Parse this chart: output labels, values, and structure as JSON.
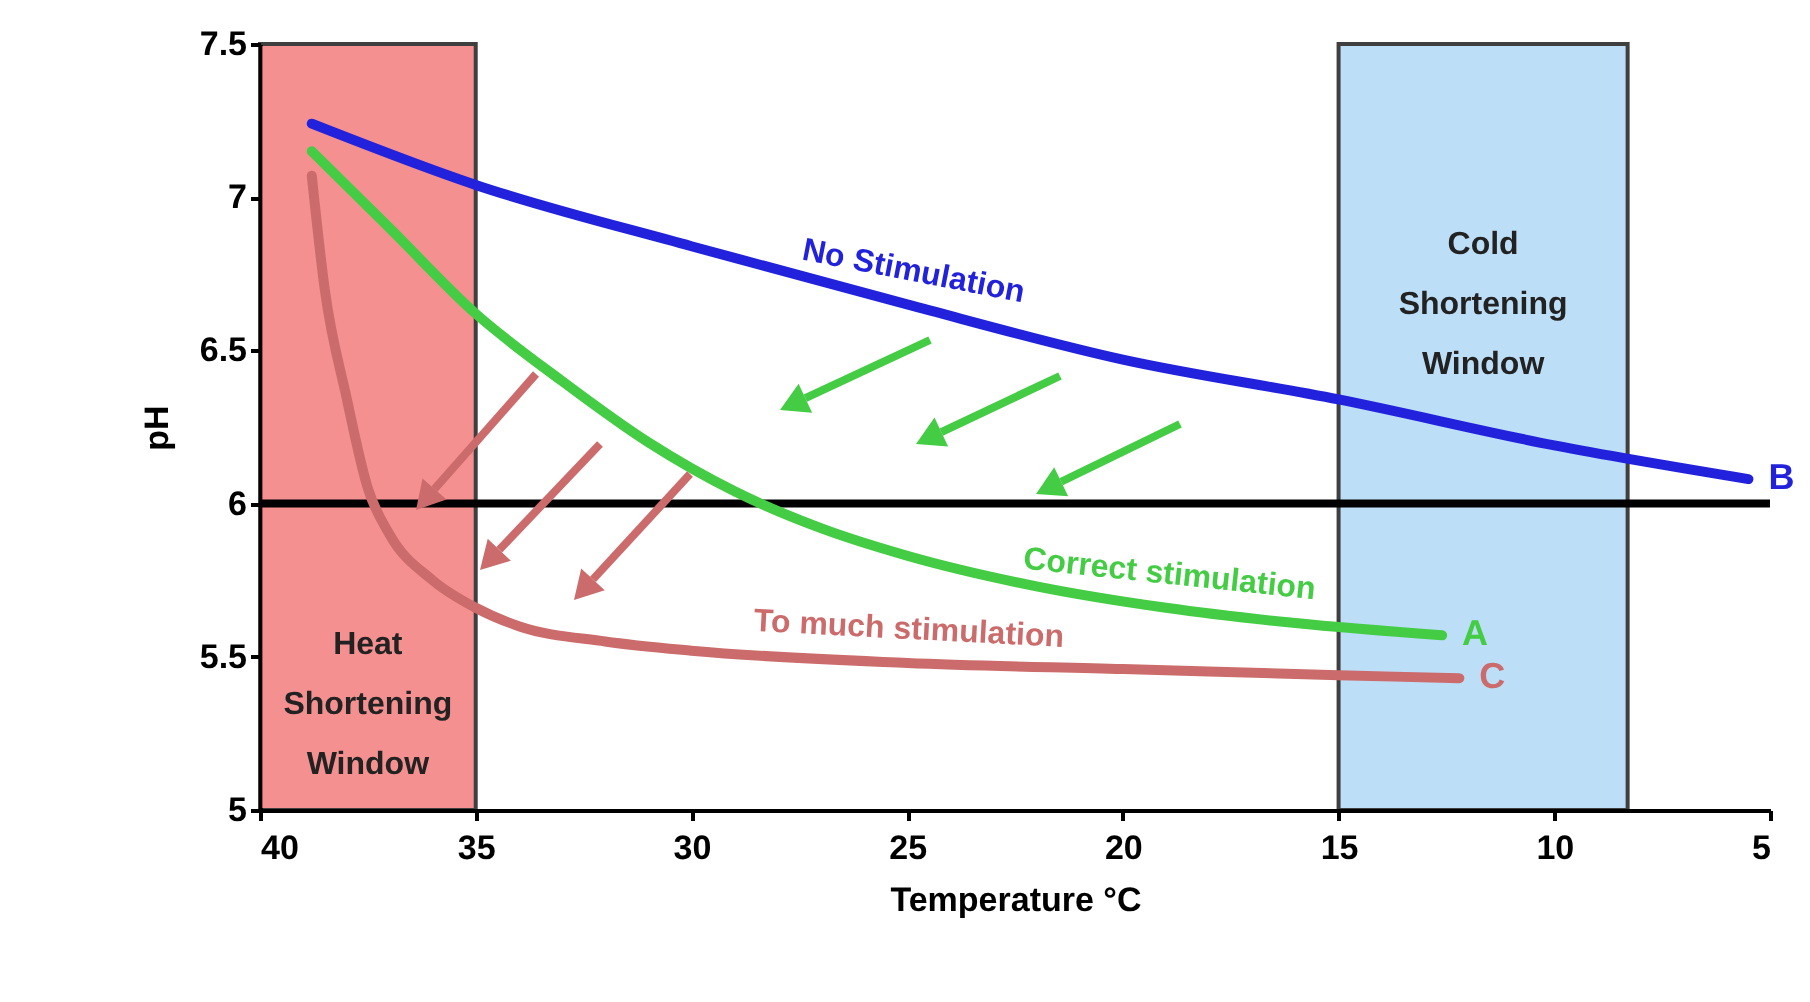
{
  "chart_data": {
    "type": "line",
    "xlabel": "Temperature °C",
    "ylabel": "pH",
    "xlim": [
      40,
      5
    ],
    "xticks": [
      40,
      35,
      30,
      25,
      20,
      15,
      10,
      5
    ],
    "ylim": [
      5,
      7.5
    ],
    "yticks": [
      5,
      5.5,
      6,
      6.5,
      7,
      7.5
    ],
    "grid": false,
    "legend": false,
    "marker": "none",
    "line_style": "solid",
    "series": [
      {
        "name": "No Stimulation",
        "color": "#2222dd",
        "x": [
          38.8,
          35,
          30,
          25,
          20,
          15,
          10,
          5.5
        ],
        "values": [
          7.24,
          7.04,
          6.84,
          6.65,
          6.47,
          6.34,
          6.19,
          6.08
        ]
      },
      {
        "name": "Correct stimulation",
        "color": "#44cc44",
        "x": [
          38.8,
          37,
          35,
          33,
          31,
          29,
          27,
          25,
          22,
          19,
          16,
          12.6
        ],
        "values": [
          7.15,
          6.9,
          6.62,
          6.4,
          6.2,
          6.04,
          5.92,
          5.83,
          5.73,
          5.66,
          5.61,
          5.57
        ]
      },
      {
        "name": "To much stimulation",
        "color": "#cc6b6b",
        "x": [
          38.8,
          38.5,
          38,
          37.5,
          37,
          36,
          35,
          34,
          32,
          30,
          25,
          20,
          15,
          12.2
        ],
        "values": [
          7.07,
          6.7,
          6.35,
          6.05,
          5.9,
          5.75,
          5.66,
          5.6,
          5.55,
          5.52,
          5.48,
          5.46,
          5.44,
          5.43
        ]
      }
    ],
    "ref_lines": [
      {
        "axis": "y",
        "value": 6,
        "color": "#000000"
      }
    ],
    "bands": [
      {
        "axis": "x",
        "from": 40,
        "to": 35,
        "label": "Heat Shortening Window",
        "color": "#f26b6b"
      },
      {
        "axis": "x",
        "from": 15,
        "to": 8.3,
        "label": "Cold Shortening Window",
        "color": "#a6d3f5"
      }
    ],
    "annotations": [
      {
        "text": "A",
        "x": 12.6,
        "y": 5.57
      },
      {
        "text": "B",
        "x": 5.5,
        "y": 6.08
      },
      {
        "text": "C",
        "x": 12.2,
        "y": 5.43
      }
    ]
  }
}
